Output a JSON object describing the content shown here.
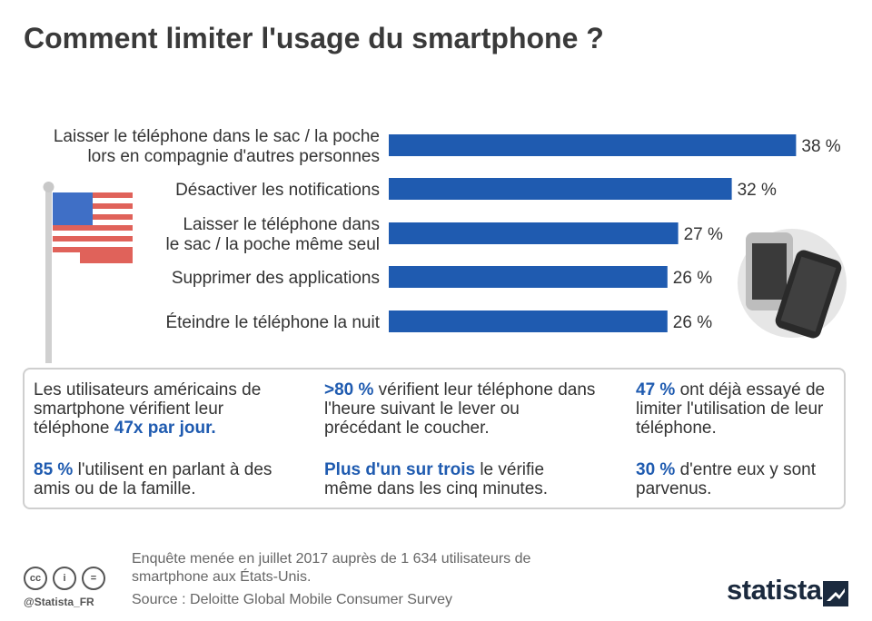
{
  "title": "Comment limiter l'usage du smartphone ?",
  "colors": {
    "bar": "#1f5bb0",
    "highlight": "#1f5bb0",
    "text": "#333333"
  },
  "chart_data": {
    "type": "bar",
    "orientation": "horizontal",
    "categories": [
      [
        "Laisser le téléphone dans le sac / la poche",
        "lors en compagnie d'autres personnes"
      ],
      [
        "Désactiver les notifications"
      ],
      [
        "Laisser le téléphone dans",
        "le sac / la poche même seul"
      ],
      [
        "Supprimer des applications"
      ],
      [
        "Éteindre le téléphone la nuit"
      ]
    ],
    "values": [
      38,
      32,
      27,
      26,
      26
    ],
    "value_labels": [
      "38 %",
      "32 %",
      "27 %",
      "26 %",
      "26 %"
    ],
    "unit": "%",
    "xlim": [
      0,
      40
    ],
    "grid": false,
    "legend": "none"
  },
  "facts": [
    {
      "pre": "Les utilisateurs américains de smartphone vérifient leur téléphone ",
      "hl": "47x par jour.",
      "post": ""
    },
    {
      "pre": "",
      "hl": ">80 %",
      "post": " vérifient leur téléphone dans l'heure suivant le lever ou précédant le coucher."
    },
    {
      "pre": "",
      "hl": "47 %",
      "post": " ont déjà essayé de limiter l'utilisation de leur téléphone."
    },
    {
      "pre": "",
      "hl": "85 %",
      "post": " l'utilisent en parlant à des amis ou de la famille."
    },
    {
      "pre": "",
      "hl": "Plus d'un sur trois",
      "post": " le vérifie même dans les cinq minutes."
    },
    {
      "pre": "",
      "hl": "30 %",
      "post": " d'entre eux y sont parvenus."
    }
  ],
  "footer": {
    "note": "Enquête menée en juillet 2017 auprès de 1 634 utilisateurs de smartphone aux États-Unis.",
    "source": "Source : Deloitte Global Mobile Consumer Survey",
    "handle": "@Statista_FR",
    "brand": "statista"
  },
  "icons": [
    "us-flag-icon",
    "smartphones-icon",
    "cc-icon",
    "by-icon",
    "nd-icon",
    "statista-logo-icon"
  ]
}
